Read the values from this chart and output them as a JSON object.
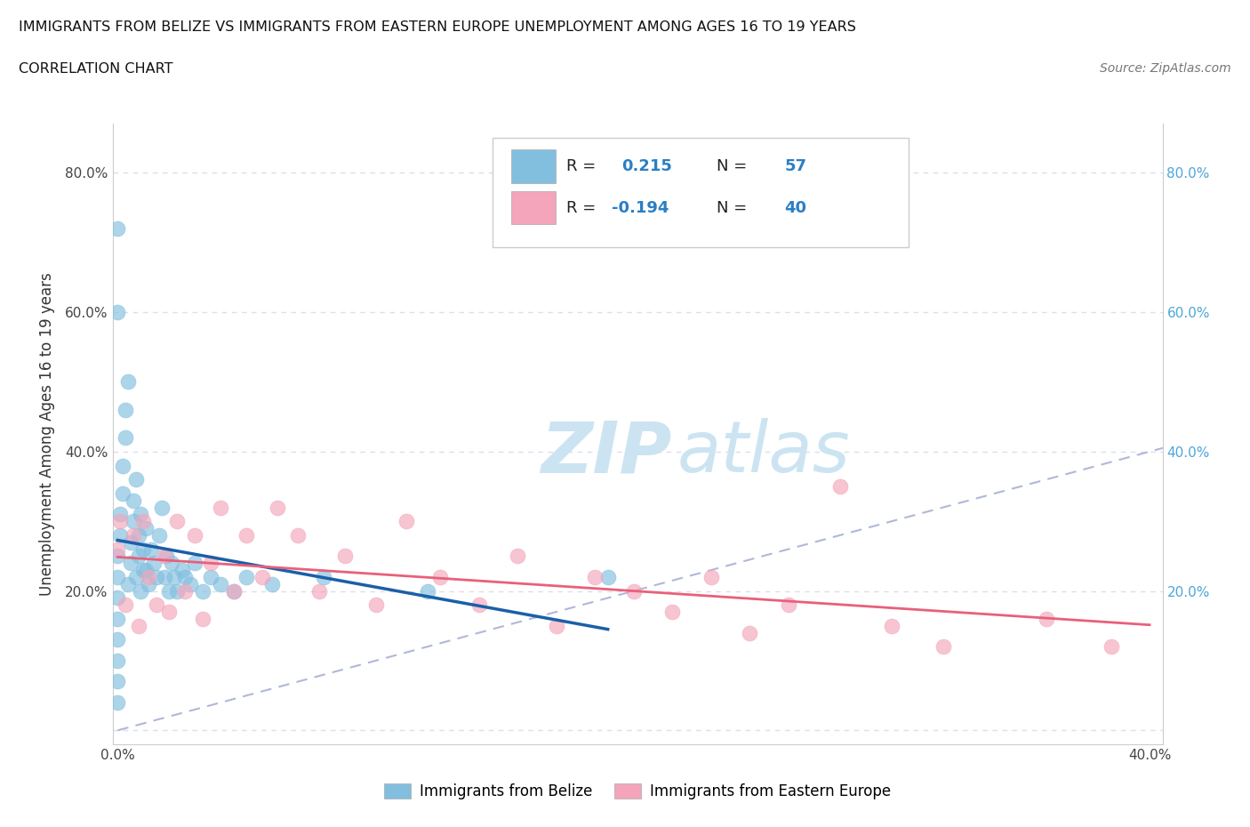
{
  "title_line1": "IMMIGRANTS FROM BELIZE VS IMMIGRANTS FROM EASTERN EUROPE UNEMPLOYMENT AMONG AGES 16 TO 19 YEARS",
  "title_line2": "CORRELATION CHART",
  "source_text": "Source: ZipAtlas.com",
  "ylabel": "Unemployment Among Ages 16 to 19 years",
  "xlim": [
    -0.002,
    0.405
  ],
  "ylim": [
    -0.02,
    0.87
  ],
  "xticks": [
    0.0,
    0.1,
    0.2,
    0.3,
    0.4
  ],
  "xticklabels": [
    "0.0%",
    "",
    "",
    "",
    "40.0%"
  ],
  "yticks": [
    0.0,
    0.2,
    0.4,
    0.6,
    0.8
  ],
  "yticklabels_left": [
    "",
    "20.0%",
    "40.0%",
    "60.0%",
    "80.0%"
  ],
  "yticklabels_right": [
    "",
    "20.0%",
    "40.0%",
    "60.0%",
    "80.0%"
  ],
  "belize_color": "#82bfdf",
  "eastern_europe_color": "#f4a5bb",
  "belize_trend_color": "#1a5fa8",
  "ee_trend_color": "#e8607a",
  "diagonal_color": "#b0b8d8",
  "belize_R": 0.215,
  "belize_N": 57,
  "eastern_europe_R": -0.194,
  "eastern_europe_N": 40,
  "watermark_zip_color": "#cce4f2",
  "watermark_atlas_color": "#cce4f2",
  "belize_x": [
    0.0,
    0.0,
    0.0,
    0.0,
    0.0,
    0.0,
    0.0,
    0.0,
    0.0,
    0.0,
    0.001,
    0.001,
    0.002,
    0.002,
    0.003,
    0.003,
    0.004,
    0.004,
    0.005,
    0.005,
    0.006,
    0.006,
    0.007,
    0.007,
    0.008,
    0.008,
    0.009,
    0.009,
    0.01,
    0.01,
    0.011,
    0.011,
    0.012,
    0.013,
    0.014,
    0.015,
    0.016,
    0.017,
    0.018,
    0.019,
    0.02,
    0.021,
    0.022,
    0.023,
    0.025,
    0.026,
    0.028,
    0.03,
    0.033,
    0.036,
    0.04,
    0.045,
    0.05,
    0.06,
    0.08,
    0.12,
    0.19
  ],
  "belize_y": [
    0.72,
    0.6,
    0.04,
    0.07,
    0.1,
    0.13,
    0.16,
    0.19,
    0.22,
    0.25,
    0.28,
    0.31,
    0.34,
    0.38,
    0.42,
    0.46,
    0.5,
    0.21,
    0.24,
    0.27,
    0.3,
    0.33,
    0.36,
    0.22,
    0.25,
    0.28,
    0.31,
    0.2,
    0.23,
    0.26,
    0.29,
    0.23,
    0.21,
    0.26,
    0.24,
    0.22,
    0.28,
    0.32,
    0.22,
    0.25,
    0.2,
    0.24,
    0.22,
    0.2,
    0.23,
    0.22,
    0.21,
    0.24,
    0.2,
    0.22,
    0.21,
    0.2,
    0.22,
    0.21,
    0.22,
    0.2,
    0.22
  ],
  "ee_x": [
    0.0,
    0.001,
    0.003,
    0.006,
    0.008,
    0.01,
    0.012,
    0.015,
    0.018,
    0.02,
    0.023,
    0.026,
    0.03,
    0.033,
    0.036,
    0.04,
    0.045,
    0.05,
    0.056,
    0.062,
    0.07,
    0.078,
    0.088,
    0.1,
    0.112,
    0.125,
    0.14,
    0.155,
    0.17,
    0.185,
    0.2,
    0.215,
    0.23,
    0.245,
    0.26,
    0.28,
    0.3,
    0.32,
    0.36,
    0.385
  ],
  "ee_y": [
    0.26,
    0.3,
    0.18,
    0.28,
    0.15,
    0.3,
    0.22,
    0.18,
    0.25,
    0.17,
    0.3,
    0.2,
    0.28,
    0.16,
    0.24,
    0.32,
    0.2,
    0.28,
    0.22,
    0.32,
    0.28,
    0.2,
    0.25,
    0.18,
    0.3,
    0.22,
    0.18,
    0.25,
    0.15,
    0.22,
    0.2,
    0.17,
    0.22,
    0.14,
    0.18,
    0.35,
    0.15,
    0.12,
    0.16,
    0.12
  ]
}
